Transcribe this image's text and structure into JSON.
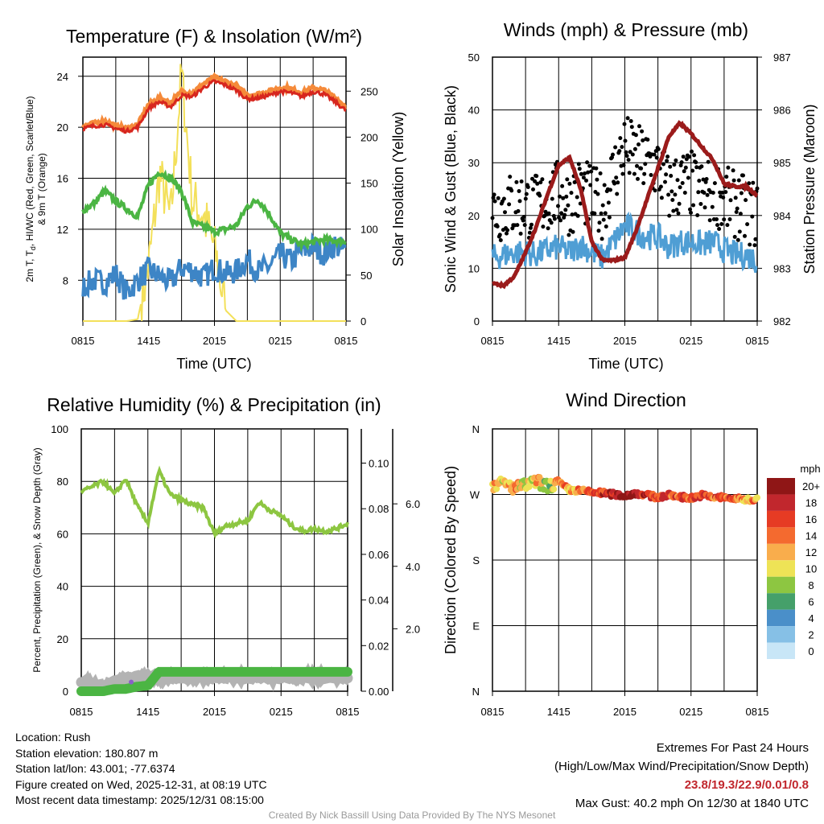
{
  "chart_data": [
    {
      "type": "line",
      "title": "Temperature (F) & Insolation (W/m²)",
      "xlabel": "Time (UTC)",
      "ylabel": "2m T, Td, HI/WC (Red, Green, Scarlet/Blue) & 9m T (Orange)",
      "ylabel_line1": "2m T, T",
      "ylabel_sub": "d",
      "ylabel_line1_rest": ", HI/WC (Red, Green, Scarlet/Blue)",
      "ylabel_line2": "& 9m T (Orange)",
      "ylabel_right": "Solar Insolation (Yellow)",
      "xticks": [
        "0815",
        "1415",
        "2015",
        "0215",
        "0815"
      ],
      "ylim": [
        4.8,
        25.5
      ],
      "yticks": [
        8,
        12,
        16,
        20,
        24
      ],
      "ylim_right": [
        0,
        287
      ],
      "yticks_right": [
        0,
        50,
        100,
        150,
        200,
        250
      ],
      "colors": {
        "temp": "#d7261e",
        "temp9m": "#f58a3a",
        "dewpoint": "#4bb543",
        "windchill": "#3d85c6",
        "solar": "#f3e05a"
      },
      "x": [
        0,
        1,
        2,
        3,
        4,
        5,
        6,
        7,
        8,
        9,
        10,
        11,
        12,
        13,
        14,
        15,
        16,
        17,
        18,
        19,
        20,
        21,
        22,
        23,
        24
      ],
      "series": [
        {
          "name": "2m T",
          "values": [
            19.9,
            20.1,
            20.2,
            19.9,
            19.7,
            20.0,
            21.5,
            22.0,
            21.6,
            22.5,
            22.4,
            23.1,
            23.6,
            23.3,
            22.9,
            22.2,
            22.3,
            22.5,
            22.8,
            22.7,
            22.4,
            22.8,
            22.6,
            22.0,
            21.3
          ]
        },
        {
          "name": "9m T",
          "values": [
            20.1,
            20.3,
            20.5,
            20.1,
            19.9,
            20.2,
            21.8,
            22.3,
            21.9,
            22.8,
            22.7,
            23.4,
            23.9,
            23.6,
            23.2,
            22.5,
            22.6,
            22.8,
            23.1,
            23.0,
            22.7,
            23.1,
            22.9,
            22.3,
            21.6
          ]
        },
        {
          "name": "Dew Point",
          "values": [
            13.5,
            14.0,
            15.0,
            14.2,
            13.6,
            13.0,
            15.5,
            16.5,
            16.0,
            15.0,
            12.5,
            12.2,
            11.8,
            12.0,
            12.3,
            13.8,
            14.3,
            13.2,
            11.7,
            11.2,
            10.8,
            11.0,
            11.2,
            11.1,
            11.0
          ]
        },
        {
          "name": "Wind Chill",
          "values": [
            7.5,
            8.0,
            7.8,
            8.5,
            7.0,
            8.0,
            8.8,
            8.3,
            7.8,
            9.0,
            8.8,
            8.2,
            9.0,
            8.5,
            8.7,
            9.6,
            8.7,
            9.1,
            10.0,
            9.5,
            10.3,
            10.6,
            10.1,
            10.8,
            10.2
          ]
        },
        {
          "name": "Solar Insolation",
          "axis": "right",
          "values": [
            0,
            0,
            0,
            0,
            0,
            2,
            60,
            160,
            110,
            270,
            130,
            115,
            80,
            12,
            0,
            0,
            0,
            0,
            0,
            0,
            0,
            0,
            0,
            0,
            0
          ]
        }
      ]
    },
    {
      "type": "line",
      "title": "Winds (mph) & Pressure (mb)",
      "xlabel": "Time (UTC)",
      "ylabel": "Sonic Wind & Gust (Blue, Black)",
      "ylabel_right": "Station Pressure (Maroon)",
      "xticks": [
        "0815",
        "1415",
        "2015",
        "0215",
        "0815"
      ],
      "ylim": [
        0,
        50
      ],
      "yticks": [
        0,
        10,
        20,
        30,
        40,
        50
      ],
      "ylim_right": [
        982,
        987
      ],
      "yticks_right": [
        982,
        983,
        984,
        985,
        986,
        987
      ],
      "colors": {
        "wind": "#4f9ed4",
        "gust": "#000000",
        "pressure": "#9b1b1b"
      },
      "x": [
        0,
        1,
        2,
        3,
        4,
        5,
        6,
        7,
        8,
        9,
        10,
        11,
        12,
        13,
        14,
        15,
        16,
        17,
        18,
        19,
        20,
        21,
        22,
        23,
        24
      ],
      "series": [
        {
          "name": "Sonic Wind",
          "values": [
            12,
            12.5,
            13,
            13,
            12.5,
            13.5,
            14,
            13,
            14.5,
            13,
            12,
            15,
            18,
            17,
            16,
            16,
            14,
            15,
            15,
            14.5,
            15,
            13.5,
            12.5,
            12.5,
            11.5
          ]
        },
        {
          "name": "Gust",
          "values": [
            21,
            21.5,
            22,
            22,
            21.5,
            23,
            24,
            22.5,
            25,
            23,
            22,
            28,
            33,
            31,
            30,
            29,
            25,
            26,
            26,
            24,
            25,
            23,
            22,
            21,
            20
          ]
        },
        {
          "name": "Station Pressure",
          "axis": "right",
          "values": [
            982.72,
            982.67,
            982.85,
            983.3,
            983.8,
            984.4,
            984.95,
            985.1,
            984.5,
            983.5,
            983.15,
            983.15,
            983.2,
            983.7,
            984.3,
            984.9,
            985.5,
            985.75,
            985.55,
            985.3,
            985.05,
            984.6,
            984.55,
            984.55,
            984.38
          ]
        }
      ]
    },
    {
      "type": "line",
      "title": "Relative Humidity (%) & Precipitation (in)",
      "ylabel": "Percent, Precipitation (Green), & Snow Depth (Gray)",
      "xticks": [
        "0815",
        "1415",
        "2015",
        "0215",
        "0815"
      ],
      "ylim": [
        0,
        100
      ],
      "yticks": [
        0,
        20,
        40,
        60,
        80,
        100
      ],
      "yticks_right1": [
        "0.00",
        "0.02",
        "0.04",
        "0.06",
        "0.08",
        "0.10"
      ],
      "ylim_right1": [
        0,
        0.115
      ],
      "yticks_right2": [
        "2.0",
        "4.0",
        "6.0"
      ],
      "ylim_right2": [
        0,
        8.4
      ],
      "colors": {
        "rh": "#8dc641",
        "precip": "#4bb543",
        "snow": "#b3b3b3",
        "marker": "#8a5fc7"
      },
      "x": [
        0,
        1,
        2,
        3,
        4,
        5,
        6,
        7,
        8,
        9,
        10,
        11,
        12,
        13,
        14,
        15,
        16,
        17,
        18,
        19,
        20,
        21,
        22,
        23,
        24
      ],
      "series": [
        {
          "name": "Relative Humidity",
          "values": [
            76,
            78,
            80,
            75,
            81,
            71,
            64,
            84,
            75,
            73,
            71,
            70,
            60,
            63,
            64,
            65,
            72,
            69,
            67,
            63,
            61,
            62,
            61,
            62,
            64
          ]
        },
        {
          "name": "Precipitation",
          "axis": "right1",
          "values": [
            0,
            0,
            0,
            0.001,
            0.001,
            0.002,
            0.0025,
            0.0085,
            0.0085,
            0.0085,
            0.0085,
            0.0085,
            0.0085,
            0.0085,
            0.0085,
            0.0085,
            0.0085,
            0.0085,
            0.0085,
            0.0085,
            0.0085,
            0.0085,
            0.0085,
            0.0085,
            0.0085
          ]
        },
        {
          "name": "Snow Depth",
          "axis": "right2",
          "values": [
            0.3,
            0.2,
            0.15,
            0.3,
            0.4,
            0.45,
            0.45,
            0.45,
            0.45,
            0.45,
            0.45,
            0.45,
            0.45,
            0.45,
            0.45,
            0.45,
            0.45,
            0.45,
            0.45,
            0.45,
            0.45,
            0.45,
            0.45,
            0.45,
            0.45
          ]
        }
      ]
    },
    {
      "type": "scatter",
      "title": "Wind Direction",
      "ylabel": "Direction (Colored By Speed)",
      "xticks": [
        "0815",
        "1415",
        "2015",
        "0215",
        "0815"
      ],
      "ylim": [
        0,
        360
      ],
      "yticks": [
        "N",
        "E",
        "S",
        "W",
        "N"
      ],
      "colorbar_label": "mph",
      "colorbar_ticks": [
        "0",
        "2",
        "4",
        "6",
        "8",
        "10",
        "12",
        "14",
        "16",
        "18",
        "20+"
      ],
      "colorbar_colors": [
        "#c8e6f7",
        "#86c0e6",
        "#4a8fc9",
        "#45a06a",
        "#8dc641",
        "#eee356",
        "#f9ad4c",
        "#f46a2f",
        "#e63b24",
        "#c1272d",
        "#8f1616"
      ],
      "x": [
        0,
        1,
        2,
        3,
        4,
        5,
        6,
        7,
        8,
        9,
        10,
        11,
        12,
        13,
        14,
        15,
        16,
        17,
        18,
        19,
        20,
        21,
        22,
        23,
        24
      ],
      "direction": [
        283,
        285,
        279,
        282,
        288,
        281,
        286,
        276,
        275,
        273,
        272,
        270,
        268,
        272,
        269,
        266,
        269,
        267,
        265,
        269,
        266,
        266,
        264,
        263,
        263
      ],
      "speed": [
        12,
        11,
        13,
        10,
        11,
        8,
        15,
        12,
        14,
        15,
        17,
        19,
        21,
        19,
        17,
        16,
        15,
        15,
        16,
        16,
        15,
        15,
        14,
        13,
        13
      ]
    }
  ],
  "info": {
    "location": "Location: Rush",
    "elevation": "Station elevation: 180.807 m",
    "latlon": "Station lat/lon: 43.001; -77.6374",
    "created": "Figure created on Wed, 2025-12-31, at 08:19 UTC",
    "timestamp": "Most recent data timestamp: 2025/12/31 08:15:00"
  },
  "extremes": {
    "title": "Extremes For Past 24 Hours",
    "subtitle": "(High/Low/Max Wind/Precipitation/Snow Depth)",
    "values": "23.8/19.3/22.9/0.01/0.8",
    "max_gust": "Max Gust: 40.2 mph On 12/30 at 1840 UTC"
  },
  "credit": "Created By Nick Bassill Using Data Provided By The NYS Mesonet"
}
